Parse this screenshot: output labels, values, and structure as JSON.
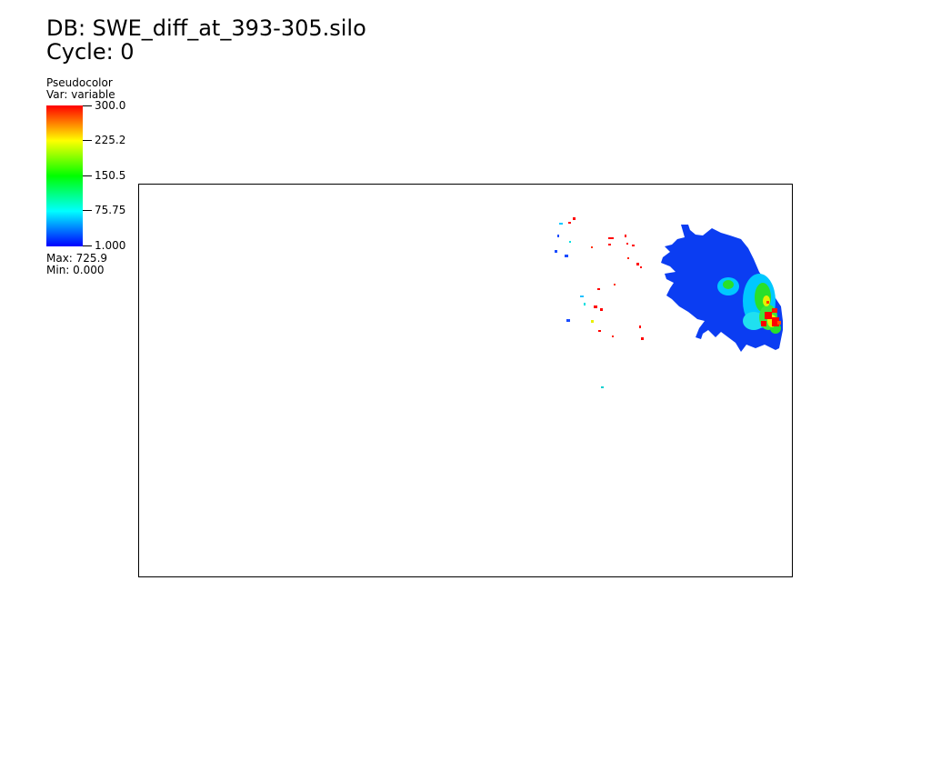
{
  "header": {
    "db_title": "DB: SWE_diff_at_393-305.silo",
    "cycle": "Cycle: 0"
  },
  "legend": {
    "plot_type": "Pseudocolor",
    "var_label": "Var: variable",
    "max_text": "Max:  725.9",
    "min_text": "Min:  0.000",
    "ticks": [
      {
        "label": "300.0",
        "value": 300.0
      },
      {
        "label": "225.2",
        "value": 225.25
      },
      {
        "label": "150.5",
        "value": 150.5
      },
      {
        "label": "75.75",
        "value": 75.75
      },
      {
        "label": "1.000",
        "value": 1.0
      }
    ],
    "colors": [
      "#0000ff",
      "#00ffff",
      "#00ff00",
      "#ffff00",
      "#ff0000"
    ]
  },
  "chart_data": {
    "type": "heatmap",
    "colormap": "hot-desaturated rainbow (blue→cyan→green→yellow→red)",
    "range": [
      1.0,
      300.0
    ],
    "data_max": 725.9,
    "data_min": 0.0
  }
}
